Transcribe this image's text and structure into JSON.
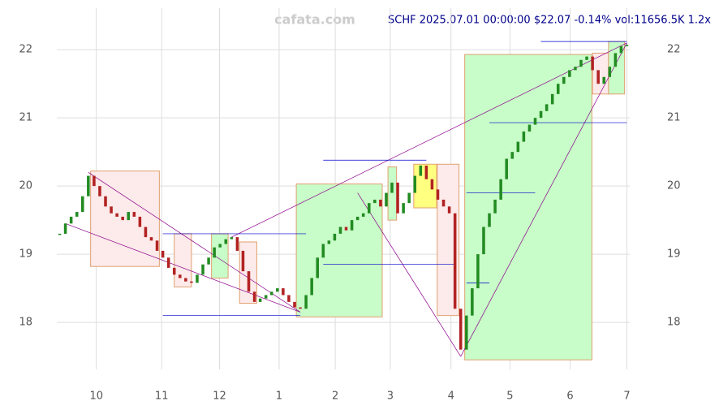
{
  "chart_data": {
    "type": "candlestick",
    "title": "SCHF 2025.07.01 00:00:00 $22.07 -0.14% vol:11656.5K 1.2x",
    "watermark": "cafata.com",
    "xlim": [
      -0.5,
      99.5
    ],
    "xticks": [
      {
        "value": 6.4,
        "label": "10"
      },
      {
        "value": 17.8,
        "label": "11"
      },
      {
        "value": 27.9,
        "label": "12"
      },
      {
        "value": 38.3,
        "label": "1"
      },
      {
        "value": 48.1,
        "label": "2"
      },
      {
        "value": 57.7,
        "label": "3"
      },
      {
        "value": 68.3,
        "label": "4"
      },
      {
        "value": 78.6,
        "label": "5"
      },
      {
        "value": 89.1,
        "label": "6"
      },
      {
        "value": 99,
        "label": "7"
      }
    ],
    "ylim": [
      17.31,
      22.61
    ],
    "yticks": [
      18,
      19,
      20,
      21,
      22
    ],
    "grid": true,
    "up_color": "#228b22",
    "down_color": "#b22222",
    "close": [
      19.3,
      19.45,
      19.55,
      19.62,
      19.85,
      20.15,
      20.0,
      19.85,
      19.7,
      19.6,
      19.55,
      19.5,
      19.62,
      19.55,
      19.4,
      19.25,
      19.2,
      19.05,
      18.95,
      18.8,
      18.7,
      18.65,
      18.6,
      18.58,
      18.7,
      18.85,
      18.95,
      19.1,
      19.15,
      19.22,
      19.25,
      19.05,
      18.75,
      18.45,
      18.3,
      18.35,
      18.4,
      18.45,
      18.5,
      18.4,
      18.3,
      18.22,
      18.2,
      18.4,
      18.65,
      18.95,
      19.15,
      19.2,
      19.3,
      19.4,
      19.35,
      19.5,
      19.55,
      19.6,
      19.75,
      19.8,
      19.7,
      19.9,
      20.05,
      19.6,
      19.75,
      19.9,
      20.15,
      20.3,
      20.1,
      19.95,
      19.8,
      19.7,
      19.6,
      18.2,
      17.6,
      18.1,
      18.5,
      19.0,
      19.4,
      19.6,
      19.8,
      20.1,
      20.4,
      20.5,
      20.65,
      20.8,
      20.9,
      21.0,
      21.1,
      21.2,
      21.35,
      21.5,
      21.6,
      21.7,
      21.75,
      21.85,
      21.9,
      21.7,
      21.5,
      21.6,
      21.75,
      21.95,
      22.05,
      22.07
    ],
    "boxes": [
      {
        "x0": 5.4,
        "x1": 17.4,
        "y0": 18.82,
        "y1": 20.22,
        "color": "#fdeaea"
      },
      {
        "x0": 20,
        "x1": 23,
        "y0": 18.52,
        "y1": 19.3,
        "color": "#fdeaea"
      },
      {
        "x0": 26.5,
        "x1": 29.4,
        "y0": 18.65,
        "y1": 19.3,
        "color": "#c8fcc8"
      },
      {
        "x0": 31.4,
        "x1": 34.4,
        "y0": 18.28,
        "y1": 19.18,
        "color": "#fdeaea"
      },
      {
        "x0": 41.3,
        "x1": 56.3,
        "y0": 18.08,
        "y1": 20.03,
        "color": "#c8fcc8"
      },
      {
        "x0": 57.3,
        "x1": 58.8,
        "y0": 19.5,
        "y1": 20.28,
        "color": "#c8fcc8"
      },
      {
        "x0": 61.8,
        "x1": 65.8,
        "y0": 19.68,
        "y1": 20.32,
        "color": "#ffff80"
      },
      {
        "x0": 65.9,
        "x1": 69.7,
        "y0": 18.1,
        "y1": 20.32,
        "color": "#fdeaea"
      },
      {
        "x0": 70.7,
        "x1": 92.9,
        "y0": 17.45,
        "y1": 21.93,
        "color": "#c8fcc8"
      },
      {
        "x0": 93,
        "x1": 95.8,
        "y0": 21.35,
        "y1": 21.95,
        "color": "#fdeaea"
      },
      {
        "x0": 95.8,
        "x1": 98.6,
        "y0": 21.35,
        "y1": 22.12,
        "color": "#c8fcc8"
      }
    ],
    "lines": [
      {
        "x0": 5,
        "y0": 20.2,
        "x1": 42,
        "y1": 18.15,
        "color": "#8b008b"
      },
      {
        "x0": 1,
        "y0": 19.45,
        "x1": 42,
        "y1": 18.15,
        "color": "#8b008b"
      },
      {
        "x0": 30,
        "y0": 19.25,
        "x1": 99,
        "y1": 22.1,
        "color": "#8b008b"
      },
      {
        "x0": 70,
        "y0": 17.5,
        "x1": 99,
        "y1": 22.1,
        "color": "#8b008b"
      },
      {
        "x0": 52,
        "y0": 19.9,
        "x1": 70,
        "y1": 17.5,
        "color": "#8b008b"
      },
      {
        "x0": 18,
        "y0": 18.1,
        "x1": 42,
        "y1": 18.1,
        "color": "#0000cd"
      },
      {
        "x0": 18,
        "y0": 19.3,
        "x1": 43,
        "y1": 19.3,
        "color": "#0000cd"
      },
      {
        "x0": 46,
        "y0": 18.85,
        "x1": 69,
        "y1": 18.85,
        "color": "#0000cd"
      },
      {
        "x0": 46,
        "y0": 20.38,
        "x1": 64,
        "y1": 20.38,
        "color": "#0000cd"
      },
      {
        "x0": 71,
        "y0": 19.9,
        "x1": 83,
        "y1": 19.9,
        "color": "#0000cd"
      },
      {
        "x0": 75,
        "y0": 20.93,
        "x1": 99,
        "y1": 20.93,
        "color": "#0000cd"
      },
      {
        "x0": 84,
        "y0": 22.12,
        "x1": 99,
        "y1": 22.12,
        "color": "#0000cd"
      },
      {
        "x0": 71,
        "y0": 18.58,
        "x1": 75,
        "y1": 18.58,
        "color": "#0000cd"
      }
    ]
  }
}
